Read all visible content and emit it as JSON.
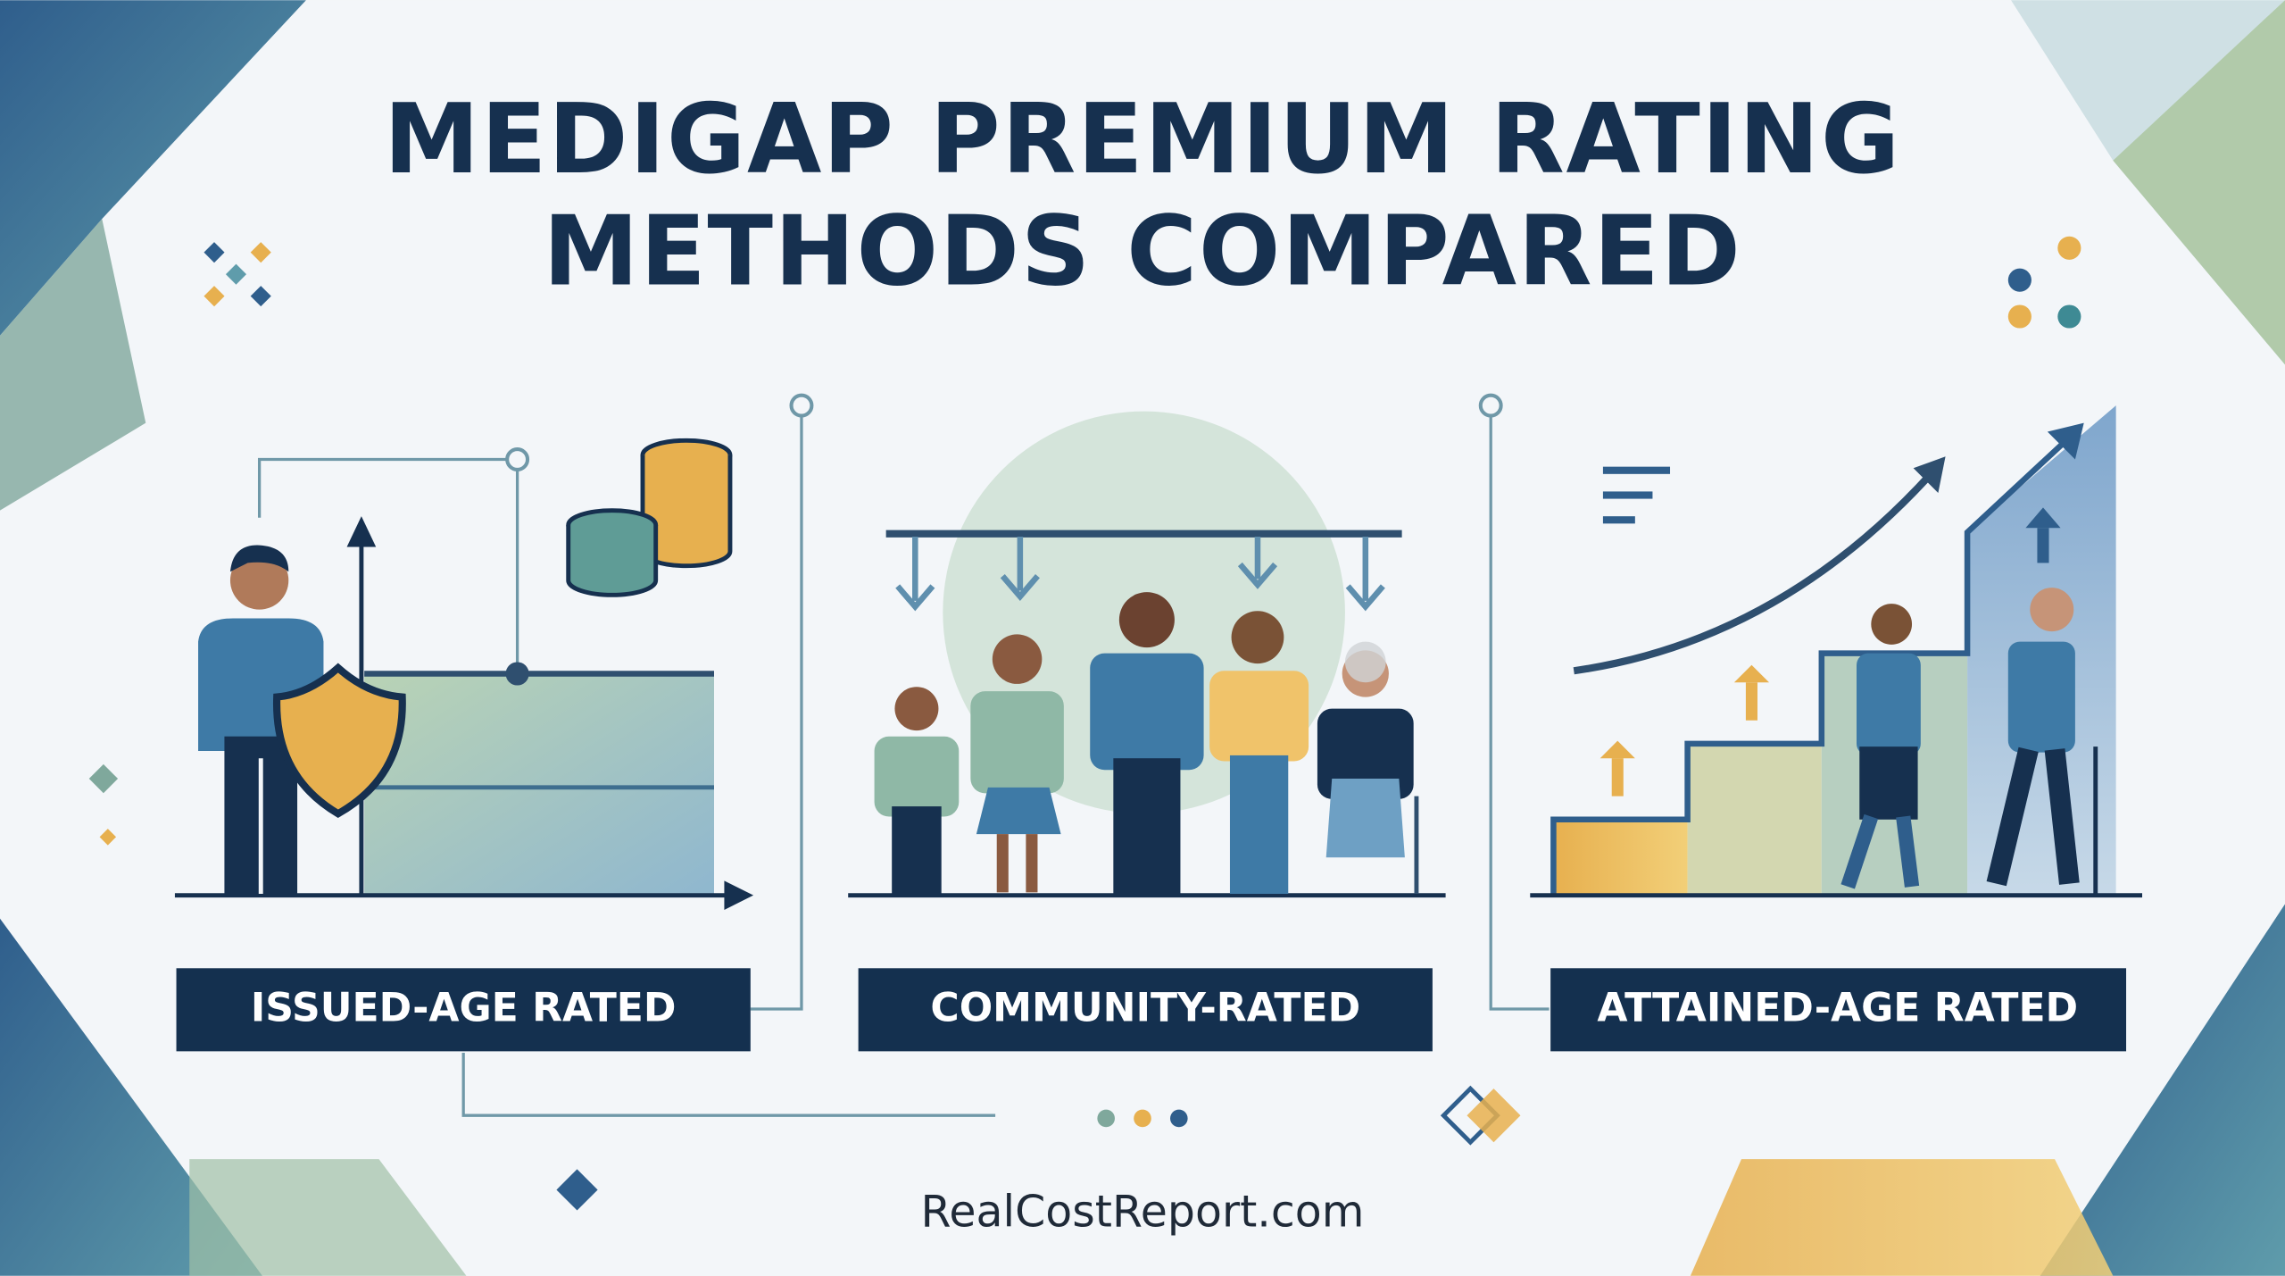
{
  "header": {
    "title_lines": [
      "MEDIGAP PREMIUM RATING",
      "METHODS COMPARED"
    ]
  },
  "panels": [
    {
      "label": "ISSUED-AGE RATED"
    },
    {
      "label": "COMMUNITY-RATED"
    },
    {
      "label": "ATTAINED-AGE RATED"
    }
  ],
  "footer": {
    "url": "RealCostReport.com"
  }
}
